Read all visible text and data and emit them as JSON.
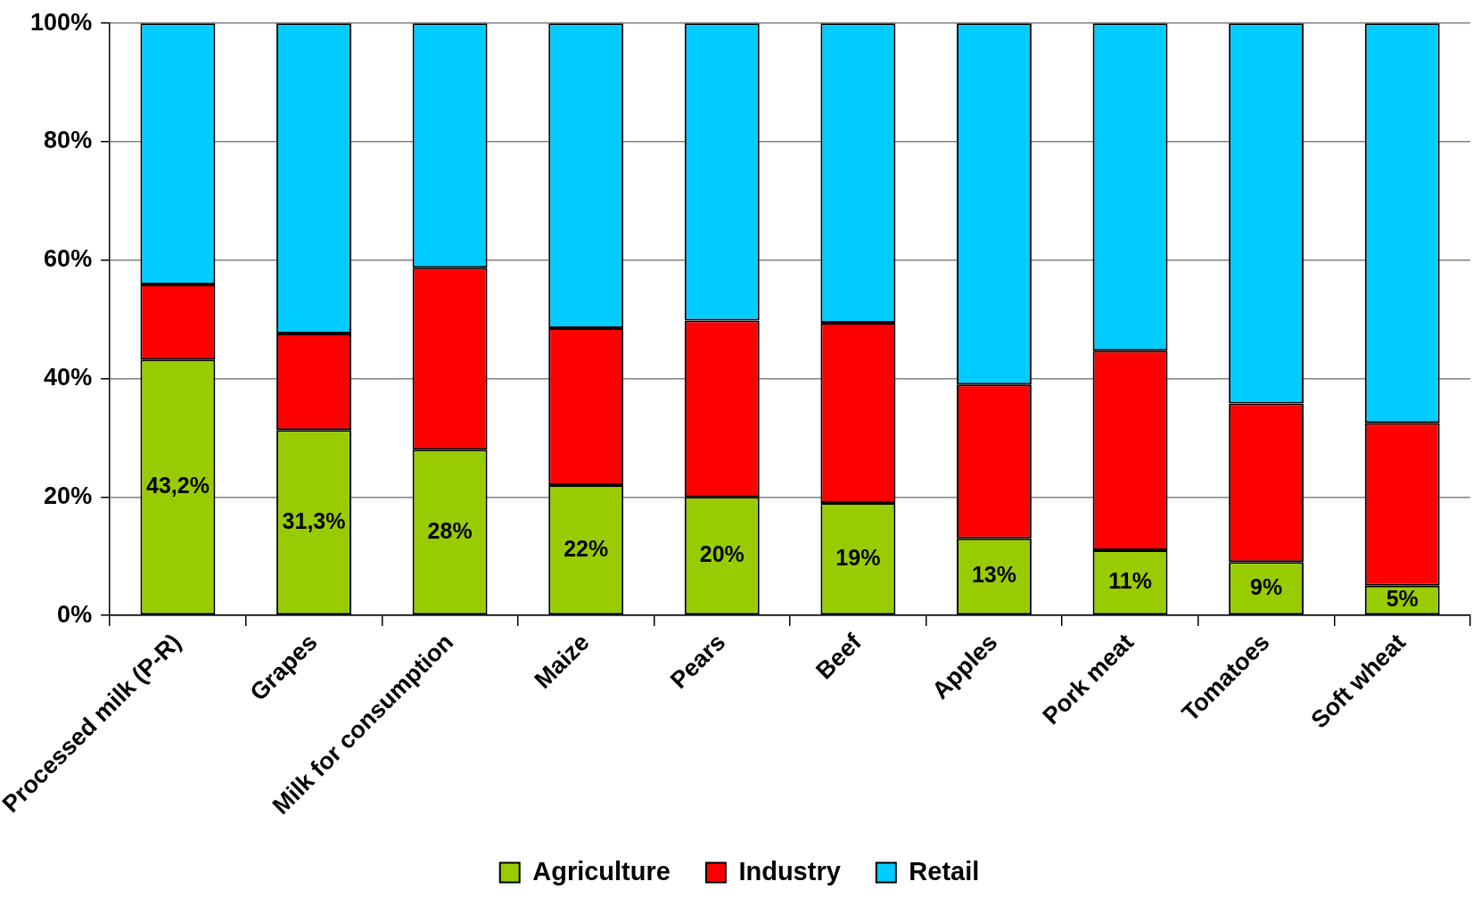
{
  "chart_data": {
    "type": "bar",
    "stacked": true,
    "categories": [
      "Processed milk (P-R)",
      "Grapes",
      "Milk for consumption",
      "Maize",
      "Pears",
      "Beef",
      "Apples",
      "Pork meat",
      "Tomatoes",
      "Soft wheat"
    ],
    "series": [
      {
        "name": "Agriculture",
        "color": "#99cc00",
        "values": [
          43.2,
          31.3,
          28,
          22,
          20,
          19,
          13,
          11,
          9,
          5
        ],
        "value_labels": [
          "43,2%",
          "31,3%",
          "28%",
          "22%",
          "20%",
          "19%",
          "13%",
          "11%",
          "9%",
          "5%"
        ]
      },
      {
        "name": "Industry",
        "color": "#ff0000",
        "values": [
          12.7,
          16.3,
          30.7,
          26.5,
          29.8,
          30.4,
          26,
          33.7,
          26.8,
          27.5
        ]
      },
      {
        "name": "Retail",
        "color": "#00ccff",
        "values": [
          44.1,
          52.4,
          41.3,
          51.5,
          50.2,
          50.6,
          61,
          55.3,
          64.2,
          67.5
        ]
      }
    ],
    "ylim": [
      0,
      100
    ],
    "yticks": [
      {
        "value": 0,
        "label": "0%"
      },
      {
        "value": 20,
        "label": "20%"
      },
      {
        "value": 40,
        "label": "40%"
      },
      {
        "value": 60,
        "label": "60%"
      },
      {
        "value": 80,
        "label": "80%"
      },
      {
        "value": 100,
        "label": "100%"
      }
    ],
    "grid": "y",
    "legend": "bottom"
  }
}
